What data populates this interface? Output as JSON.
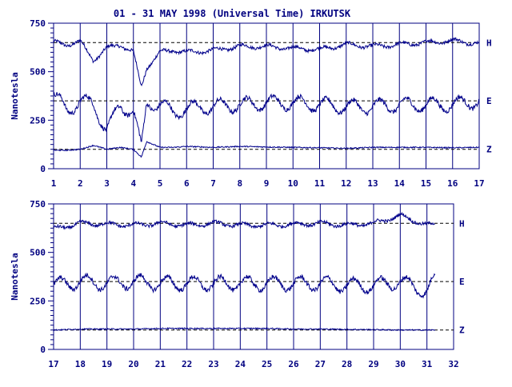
{
  "page": {
    "title": "01 - 31 MAY 1998 (Universal Time) IRKUTSK"
  },
  "colors": {
    "trace": "#00008b",
    "axis": "#000080",
    "baseline": "#000000",
    "background": "#ffffff"
  },
  "chart_data": [
    {
      "type": "line",
      "title": "01 - 31 MAY 1998 (Universal Time) IRKUTSK",
      "xlabel": "",
      "ylabel": "Nanotesla",
      "xlim": [
        1,
        17
      ],
      "ylim": [
        0,
        750
      ],
      "x_ticks": [
        1,
        2,
        3,
        4,
        5,
        6,
        7,
        8,
        9,
        10,
        11,
        12,
        13,
        14,
        15,
        16,
        17
      ],
      "y_ticks": [
        0,
        250,
        500,
        750
      ],
      "grid": "vertical day lines",
      "series": [
        {
          "name": "H",
          "baseline": 650,
          "x": [
            1,
            1.5,
            2,
            2.5,
            3,
            3.5,
            4,
            4.3,
            4.5,
            5,
            5.5,
            6,
            7,
            8,
            9,
            10,
            11,
            12,
            13,
            14,
            15,
            16,
            17
          ],
          "values": [
            650,
            640,
            655,
            560,
            620,
            640,
            600,
            420,
            520,
            600,
            610,
            600,
            610,
            630,
            630,
            620,
            615,
            640,
            630,
            640,
            650,
            660,
            645
          ]
        },
        {
          "name": "E",
          "baseline": 350,
          "x": [
            1,
            1.5,
            2,
            2.5,
            3,
            3.5,
            4,
            4.3,
            4.5,
            5,
            5.5,
            6,
            7,
            8,
            9,
            10,
            11,
            12,
            13,
            14,
            15,
            16,
            17
          ],
          "values": [
            380,
            300,
            350,
            330,
            200,
            320,
            300,
            100,
            340,
            330,
            290,
            310,
            320,
            330,
            340,
            340,
            330,
            320,
            320,
            330,
            330,
            330,
            350
          ]
        },
        {
          "name": "Z",
          "baseline": 100,
          "x": [
            1,
            1.5,
            2,
            2.5,
            3,
            3.5,
            4,
            4.3,
            4.5,
            5,
            5.5,
            6,
            7,
            8,
            9,
            10,
            11,
            12,
            13,
            14,
            15,
            16,
            17
          ],
          "values": [
            95,
            95,
            100,
            120,
            100,
            110,
            100,
            60,
            140,
            110,
            110,
            115,
            110,
            115,
            112,
            110,
            108,
            105,
            110,
            110,
            110,
            108,
            110
          ]
        }
      ]
    },
    {
      "type": "line",
      "title": "",
      "xlabel": "",
      "ylabel": "Nanotesla",
      "xlim": [
        17,
        32
      ],
      "ylim": [
        0,
        750
      ],
      "x_ticks": [
        17,
        18,
        19,
        20,
        21,
        22,
        23,
        24,
        25,
        26,
        27,
        28,
        29,
        30,
        31,
        32
      ],
      "y_ticks": [
        0,
        250,
        500,
        750
      ],
      "grid": "vertical day lines",
      "series": [
        {
          "name": "H",
          "baseline": 650,
          "x": [
            17,
            18,
            19,
            20,
            21,
            22,
            23,
            24,
            25,
            26,
            27,
            28,
            29,
            30,
            31,
            31.3
          ],
          "values": [
            620,
            650,
            645,
            640,
            650,
            640,
            650,
            640,
            640,
            645,
            650,
            640,
            650,
            690,
            640,
            645
          ]
        },
        {
          "name": "E",
          "baseline": 350,
          "x": [
            17,
            18,
            19,
            20,
            21,
            22,
            23,
            24,
            25,
            26,
            27,
            28,
            29,
            30,
            31,
            31.3
          ],
          "values": [
            330,
            350,
            340,
            350,
            340,
            340,
            340,
            340,
            340,
            340,
            340,
            330,
            330,
            350,
            300,
            360
          ]
        },
        {
          "name": "Z",
          "baseline": 100,
          "x": [
            17,
            18,
            19,
            20,
            21,
            22,
            23,
            24,
            25,
            26,
            27,
            28,
            29,
            30,
            31,
            31.3
          ],
          "values": [
            100,
            105,
            105,
            105,
            108,
            108,
            108,
            108,
            108,
            105,
            105,
            103,
            102,
            100,
            100,
            100
          ]
        }
      ]
    }
  ]
}
